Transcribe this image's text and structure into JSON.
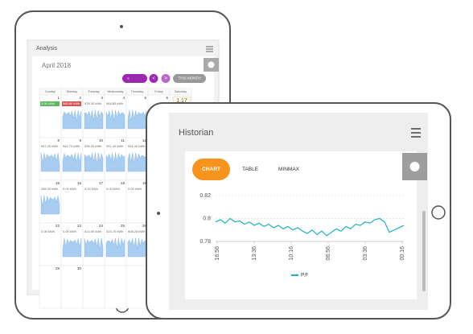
{
  "back_tablet": {
    "header": {
      "title": "Analysis"
    },
    "calendar": {
      "month": "April 2018",
      "buttons": {
        "first": "«",
        "prev": "<",
        "next": ">",
        "this_month": "THIS MONTH"
      },
      "weekdays": [
        "Sunday",
        "Monday",
        "Tuesday",
        "Wednesday",
        "Thursday",
        "Friday",
        "Saturday"
      ],
      "weeks": [
        [
          {
            "day": "1",
            "value": "3.00 kWh",
            "badge": "#5cb85c",
            "sparkline": false
          },
          {
            "day": "2",
            "value": "580.80 kWh",
            "badge": "#d9534f",
            "sparkline": true
          },
          {
            "day": "3",
            "value": "976.30 kWh",
            "sparkline": true
          },
          {
            "day": "4",
            "value": "948.80 kWh",
            "sparkline": true
          },
          {
            "day": "5",
            "sparkline": true
          },
          {
            "day": "6",
            "sparkline": false
          },
          {
            "day": "7",
            "value": "1.17",
            "badge": "#fcf8e3",
            "sparkline": false
          }
        ],
        [
          {
            "day": "8",
            "value": "947.20 kWh",
            "sparkline": true
          },
          {
            "day": "9",
            "value": "940.70 kWh",
            "sparkline": true
          },
          {
            "day": "10",
            "value": "936.20 kWh",
            "sparkline": true
          },
          {
            "day": "11",
            "value": "931.40 kWh",
            "sparkline": true
          },
          {
            "day": "12",
            "value": "921.40 kWh",
            "sparkline": true
          }
        ],
        [
          {
            "day": "15",
            "value": "285.20 kWh",
            "sparkline": true
          },
          {
            "day": "16",
            "value": "0.00 kWh",
            "sparkline": false
          },
          {
            "day": "17",
            "value": "0.00 kWh",
            "sparkline": false
          },
          {
            "day": "18",
            "value": "0.00 kWh",
            "sparkline": false
          },
          {
            "day": "19",
            "value": "0.00 kWh",
            "sparkline": false
          }
        ],
        [
          {
            "day": "22",
            "value": "0.00 kWh",
            "sparkline": false
          },
          {
            "day": "23",
            "value": "0.00 kWh",
            "sparkline": true
          },
          {
            "day": "24",
            "value": "614.00 kWh",
            "sparkline": true
          },
          {
            "day": "25",
            "value": "515.70 kWh",
            "sparkline": true
          },
          {
            "day": "26",
            "value": "608.20 kWh",
            "sparkline": true
          }
        ],
        [
          {
            "day": "29",
            "sparkline": false
          },
          {
            "day": "30",
            "sparkline": false
          }
        ]
      ]
    }
  },
  "front_tablet": {
    "header": {
      "title": "Historian"
    },
    "tabs": [
      "CHART",
      "TABLE",
      "MINMAX"
    ],
    "chart": {
      "type": "line",
      "series": [
        {
          "name": "P.F",
          "color": "#1fb2c4",
          "values": [
            0.797,
            0.799,
            0.796,
            0.8,
            0.797,
            0.798,
            0.795,
            0.797,
            0.794,
            0.796,
            0.793,
            0.795,
            0.792,
            0.794,
            0.791,
            0.793,
            0.79,
            0.792,
            0.789,
            0.787,
            0.79,
            0.786,
            0.789,
            0.785,
            0.788,
            0.791,
            0.789,
            0.793,
            0.791,
            0.795,
            0.794,
            0.797,
            0.796,
            0.799,
            0.8,
            0.797,
            0.788,
            0.79,
            0.792,
            0.794
          ]
        }
      ],
      "ylim": [
        0.775,
        0.822
      ],
      "yticks": [
        0.78,
        0.8,
        0.82
      ],
      "xticks": [
        "16:56",
        "13:36",
        "10:16",
        "06:56",
        "03:36",
        "00:16"
      ]
    }
  }
}
